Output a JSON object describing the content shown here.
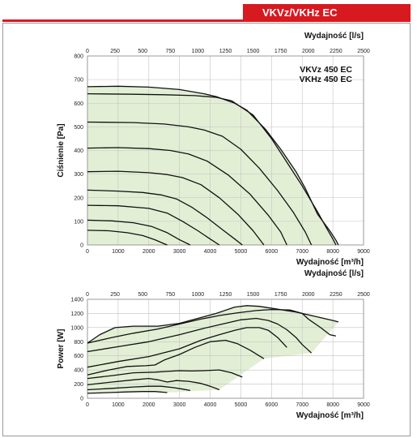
{
  "header": {
    "series": "VKVz/VKHz EC"
  },
  "colors": {
    "accent": "#d71920",
    "area_fill": "#e3efd5",
    "curve": "#111111",
    "grid": "#c2c2c2"
  },
  "chart_data": [
    {
      "type": "line",
      "id": "pressure",
      "top_axis_label": "Wydajność [l/s]",
      "top_ticks": [
        "0",
        "250",
        "500",
        "750",
        "1000",
        "1250",
        "1500",
        "1750",
        "2000",
        "2250",
        "2500"
      ],
      "xlabel": "Wydajność [m³/h]",
      "ylabel": "Ciśnienie [Pa]",
      "xlim": [
        0,
        9000
      ],
      "ylim": [
        0,
        800
      ],
      "x_ticks": [
        "0",
        "1000",
        "2000",
        "3000",
        "4000",
        "5000",
        "6000",
        "7000",
        "8000",
        "9000"
      ],
      "y_ticks": [
        "0",
        "100",
        "200",
        "300",
        "400",
        "500",
        "600",
        "700",
        "800"
      ],
      "grid": true,
      "models": [
        "VKVz 450 EC",
        "VKHz 450 EC"
      ],
      "series": [
        {
          "x": [
            0,
            1000,
            2000,
            3000,
            3800,
            4200,
            4800,
            5200,
            5800,
            6300,
            6800,
            7100,
            7500,
            7900,
            8100,
            8180
          ],
          "y": [
            670,
            672,
            668,
            658,
            640,
            628,
            600,
            570,
            490,
            405,
            310,
            240,
            130,
            60,
            20,
            0
          ]
        },
        {
          "x": [
            0,
            1500,
            2500,
            3500,
            4200,
            4700,
            5400,
            6000,
            6600,
            7000,
            7500,
            7800,
            8000,
            8100
          ],
          "y": [
            640,
            638,
            636,
            632,
            625,
            610,
            550,
            450,
            330,
            250,
            140,
            70,
            25,
            0
          ]
        },
        {
          "x": [
            0,
            1500,
            2500,
            3300,
            3800,
            4400,
            5000,
            5600,
            6200,
            6700,
            7100,
            7300
          ],
          "y": [
            520,
            518,
            512,
            500,
            487,
            460,
            405,
            325,
            230,
            140,
            55,
            0
          ]
        },
        {
          "x": [
            0,
            1000,
            2000,
            2700,
            3300,
            3900,
            4600,
            5300,
            5900,
            6300,
            6500
          ],
          "y": [
            410,
            412,
            408,
            400,
            385,
            355,
            295,
            215,
            125,
            55,
            0
          ]
        },
        {
          "x": [
            0,
            1000,
            2000,
            2600,
            3100,
            3700,
            4300,
            4900,
            5400,
            5750
          ],
          "y": [
            310,
            312,
            306,
            298,
            285,
            255,
            200,
            130,
            60,
            0
          ]
        },
        {
          "x": [
            0,
            1000,
            1800,
            2400,
            2900,
            3400,
            3900,
            4400,
            4800,
            5050
          ],
          "y": [
            232,
            228,
            222,
            212,
            195,
            160,
            115,
            65,
            25,
            0
          ]
        },
        {
          "x": [
            0,
            1000,
            2000,
            2600,
            3100,
            3600,
            4000,
            4300
          ],
          "y": [
            168,
            166,
            155,
            135,
            100,
            60,
            25,
            0
          ]
        },
        {
          "x": [
            0,
            800,
            1500,
            2100,
            2600,
            3000,
            3350
          ],
          "y": [
            105,
            102,
            94,
            78,
            52,
            22,
            0
          ]
        },
        {
          "x": [
            0,
            700,
            1300,
            1800,
            2200,
            2500,
            2600
          ],
          "y": [
            62,
            60,
            52,
            40,
            22,
            5,
            0
          ]
        }
      ]
    },
    {
      "type": "line",
      "id": "power",
      "top_axis_label": "",
      "top_ticks": [
        "0",
        "250",
        "500",
        "750",
        "1000",
        "1250",
        "1500",
        "1750",
        "2000",
        "2250",
        "2500"
      ],
      "xlabel": "Wydajność [m³/h]",
      "ylabel": "Power [W]",
      "xlim": [
        0,
        9000
      ],
      "ylim": [
        0,
        1400
      ],
      "x_ticks": [
        "0",
        "1000",
        "2000",
        "3000",
        "4000",
        "5000",
        "6000",
        "7000",
        "8000",
        "9000"
      ],
      "y_ticks": [
        "0",
        "200",
        "400",
        "600",
        "800",
        "1000",
        "1200",
        "1400"
      ],
      "grid": true,
      "series": [
        {
          "x": [
            0,
            400,
            900,
            1500,
            2300,
            3000,
            3600,
            4200,
            4800,
            5200,
            5600,
            6200,
            6800,
            7400,
            8000,
            8180
          ],
          "y": [
            780,
            900,
            1000,
            1020,
            1020,
            1060,
            1130,
            1200,
            1290,
            1310,
            1300,
            1260,
            1220,
            1160,
            1100,
            1080
          ]
        },
        {
          "x": [
            0,
            800,
            1500,
            2300,
            3000,
            3700,
            4300,
            4900,
            5500,
            6000,
            6600,
            7000,
            7200,
            7600,
            7900,
            8100
          ],
          "y": [
            780,
            860,
            920,
            980,
            1050,
            1120,
            1170,
            1210,
            1240,
            1255,
            1250,
            1200,
            1120,
            1000,
            900,
            880
          ]
        },
        {
          "x": [
            0,
            1000,
            2000,
            3000,
            3800,
            4400,
            5000,
            5500,
            5900,
            6200,
            6500,
            6800,
            7000,
            7200,
            7300
          ],
          "y": [
            660,
            730,
            800,
            900,
            990,
            1050,
            1110,
            1130,
            1100,
            1050,
            970,
            860,
            760,
            680,
            640
          ]
        },
        {
          "x": [
            0,
            1000,
            2000,
            3000,
            3700,
            4300,
            4800,
            5200,
            5600,
            5900,
            6200,
            6500
          ],
          "y": [
            440,
            520,
            590,
            700,
            820,
            900,
            960,
            1000,
            1000,
            960,
            860,
            720
          ]
        },
        {
          "x": [
            0,
            700,
            1300,
            1900,
            2200,
            2500,
            3000,
            3500,
            4000,
            4500,
            4900,
            5300,
            5750
          ],
          "y": [
            330,
            400,
            450,
            460,
            470,
            540,
            620,
            720,
            800,
            820,
            770,
            680,
            560
          ]
        },
        {
          "x": [
            0,
            800,
            1500,
            2200,
            2600,
            3000,
            3400,
            3800,
            4300,
            4700,
            5050
          ],
          "y": [
            280,
            320,
            360,
            370,
            380,
            390,
            385,
            390,
            400,
            360,
            300
          ]
        },
        {
          "x": [
            0,
            800,
            1500,
            2000,
            2300,
            2600,
            2900,
            3300,
            3700,
            4000,
            4300
          ],
          "y": [
            190,
            230,
            260,
            280,
            260,
            230,
            250,
            240,
            210,
            170,
            120
          ]
        },
        {
          "x": [
            0,
            800,
            1500,
            2000,
            2400,
            2800,
            3100,
            3350
          ],
          "y": [
            120,
            140,
            160,
            170,
            170,
            150,
            130,
            110
          ]
        },
        {
          "x": [
            0,
            700,
            1300,
            1800,
            2200,
            2500,
            2600
          ],
          "y": [
            70,
            80,
            90,
            95,
            95,
            85,
            80
          ]
        }
      ]
    }
  ]
}
